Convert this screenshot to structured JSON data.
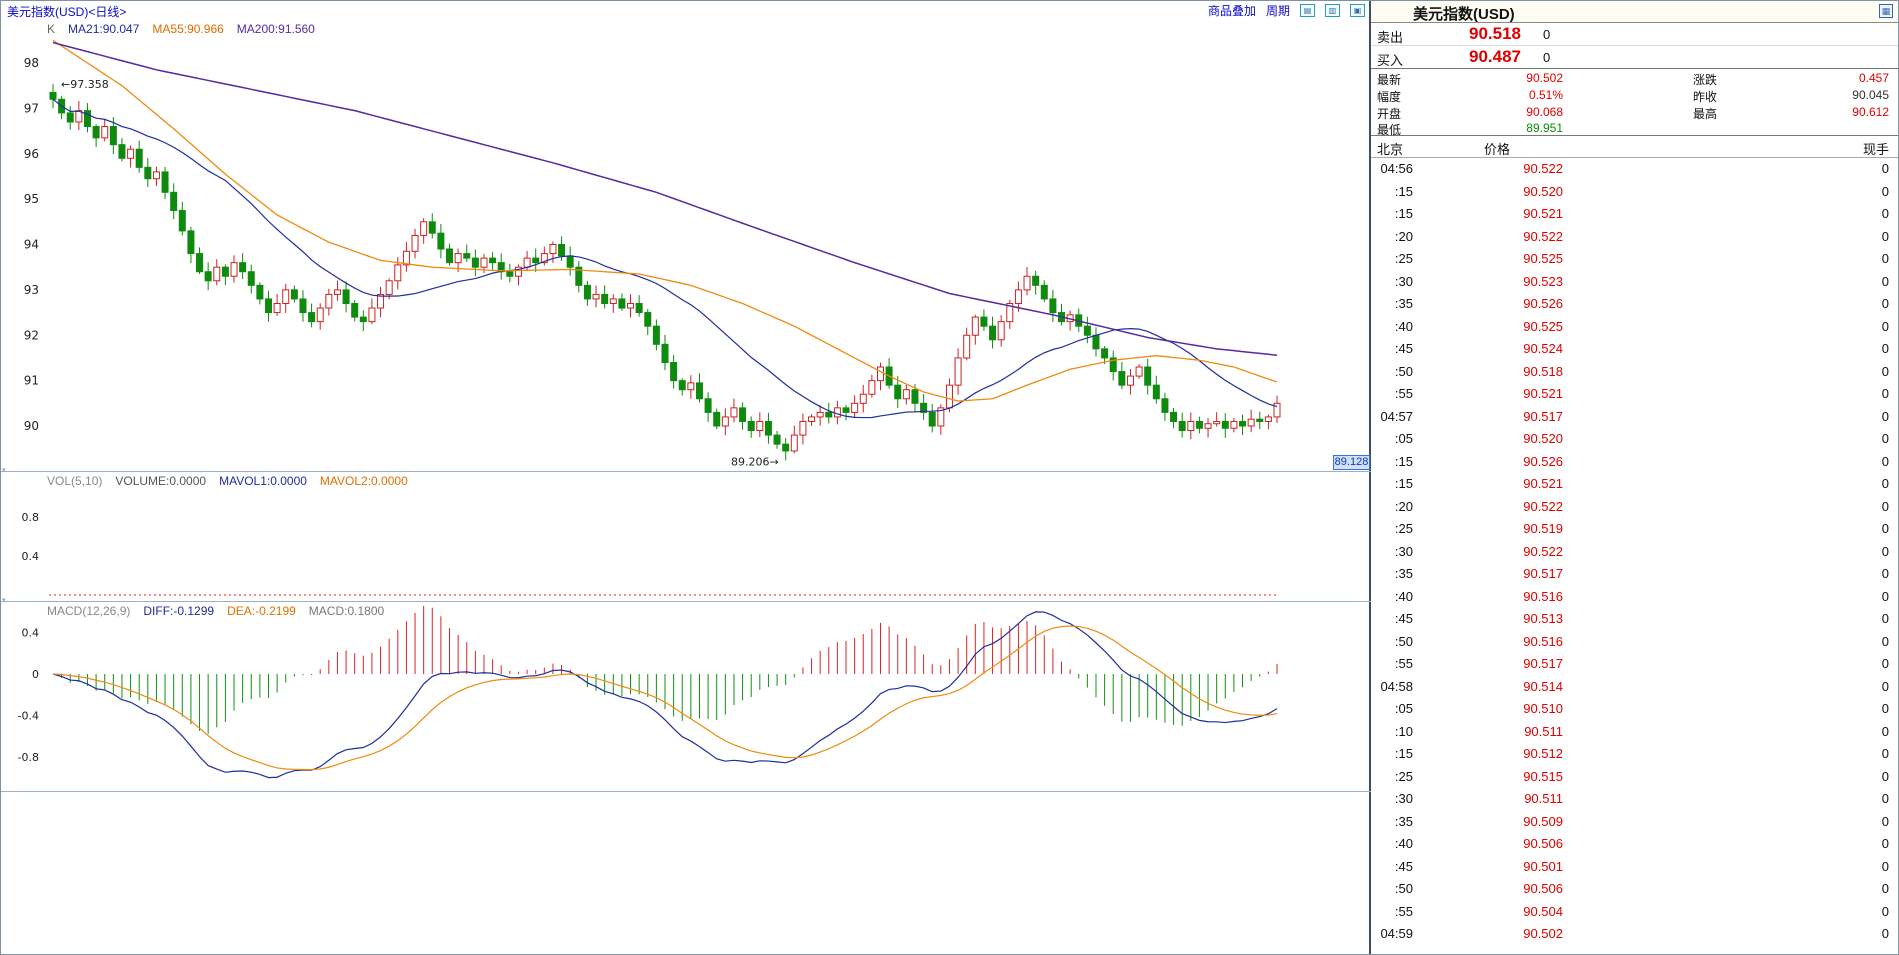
{
  "window": {
    "chart_title": "美元指数(USD)<日线>",
    "toolbar": {
      "overlay_link": "商品叠加",
      "period_link": "周期",
      "icons": [
        "tile-horizontal-icon",
        "tile-vertical-icon",
        "cascade-windows-icon"
      ]
    }
  },
  "chart_data": {
    "type": "candlestick",
    "title": "美元指数(USD) 日线",
    "ylim": [
      89.0,
      98.97
    ],
    "panels": {
      "k": {
        "legend": [
          {
            "text": "K",
            "color": "#666666"
          },
          {
            "text": "MA21:90.047",
            "color": "#1f2d9e"
          },
          {
            "text": "MA55:90.966",
            "color": "#e06a00"
          },
          {
            "text": "MA200:91.560",
            "color": "#5529a0"
          }
        ],
        "ticks": [
          98,
          97,
          96,
          95,
          94,
          93,
          92,
          91,
          90
        ],
        "annotations": {
          "high": "97.358",
          "low": "89.206",
          "right_tag": "89.128"
        }
      },
      "vol": {
        "legend": [
          {
            "text": "VOL(5,10)",
            "color": "#888888"
          },
          {
            "text": "VOLUME:0.0000",
            "color": "#555555"
          },
          {
            "text": "MAVOL1:0.0000",
            "color": "#1f2d9e"
          },
          {
            "text": "MAVOL2:0.0000",
            "color": "#e07000"
          }
        ],
        "ticks": [
          0.8,
          0.4
        ],
        "volume_values": {
          "volume": 0.0,
          "mavol1": 0.0,
          "mavol2": 0.0
        }
      },
      "macd": {
        "legend": [
          {
            "text": "MACD(12,26,9)",
            "color": "#888888"
          },
          {
            "text": "DIFF:-0.1299",
            "color": "#1f2d9e"
          },
          {
            "text": "DEA:-0.2199",
            "color": "#e07000"
          },
          {
            "text": "MACD:0.1800",
            "color": "#777777"
          }
        ],
        "ticks": [
          0.4,
          0,
          -0.4,
          -0.8
        ]
      }
    },
    "ma_values": {
      "ma21": 90.047,
      "ma55": 90.966,
      "ma200": 91.56
    },
    "macd_values": {
      "diff": -0.1299,
      "dea": -0.2199,
      "macd": 0.18
    },
    "closes": [
      97.2,
      96.9,
      96.7,
      96.95,
      96.6,
      96.35,
      96.6,
      96.2,
      95.9,
      96.1,
      95.7,
      95.45,
      95.6,
      95.15,
      94.75,
      94.3,
      93.8,
      93.4,
      93.2,
      93.5,
      93.3,
      93.6,
      93.4,
      93.1,
      92.8,
      92.5,
      92.7,
      93.0,
      92.8,
      92.5,
      92.3,
      92.6,
      92.9,
      93.0,
      92.7,
      92.4,
      92.3,
      92.6,
      92.9,
      93.2,
      93.55,
      93.85,
      94.2,
      94.5,
      94.25,
      93.9,
      93.6,
      93.8,
      93.7,
      93.5,
      93.7,
      93.6,
      93.4,
      93.3,
      93.5,
      93.7,
      93.6,
      93.8,
      94.0,
      93.75,
      93.5,
      93.1,
      92.8,
      92.9,
      92.7,
      92.8,
      92.6,
      92.7,
      92.5,
      92.2,
      91.8,
      91.4,
      91.0,
      90.8,
      90.95,
      90.6,
      90.3,
      90.0,
      90.2,
      90.4,
      90.1,
      89.9,
      90.1,
      89.8,
      89.6,
      89.45,
      89.8,
      90.1,
      90.2,
      90.3,
      90.2,
      90.4,
      90.3,
      90.5,
      90.7,
      91.0,
      91.3,
      90.9,
      90.6,
      90.8,
      90.5,
      90.3,
      90.0,
      90.4,
      90.9,
      91.5,
      92.0,
      92.4,
      92.2,
      91.9,
      92.3,
      92.7,
      93.0,
      93.3,
      93.1,
      92.8,
      92.5,
      92.3,
      92.45,
      92.2,
      92.0,
      91.7,
      91.5,
      91.2,
      90.9,
      91.1,
      91.3,
      90.9,
      90.6,
      90.3,
      90.1,
      89.9,
      90.1,
      89.95,
      90.05,
      90.1,
      89.95,
      90.1,
      90.0,
      90.15,
      90.1,
      90.2,
      90.5
    ],
    "ma55_points": [
      [
        0,
        98.5
      ],
      [
        8,
        97.5
      ],
      [
        14,
        96.55
      ],
      [
        20,
        95.55
      ],
      [
        26,
        94.65
      ],
      [
        32,
        94.05
      ],
      [
        38,
        93.65
      ],
      [
        44,
        93.5
      ],
      [
        52,
        93.42
      ],
      [
        60,
        93.45
      ],
      [
        68,
        93.35
      ],
      [
        74,
        93.1
      ],
      [
        80,
        92.7
      ],
      [
        86,
        92.2
      ],
      [
        92,
        91.6
      ],
      [
        97,
        91.1
      ],
      [
        101,
        90.75
      ],
      [
        105,
        90.55
      ],
      [
        109,
        90.6
      ],
      [
        113,
        90.9
      ],
      [
        118,
        91.25
      ],
      [
        123,
        91.45
      ],
      [
        128,
        91.55
      ],
      [
        133,
        91.45
      ],
      [
        137,
        91.3
      ],
      [
        140,
        91.1
      ],
      [
        142,
        90.97
      ]
    ],
    "ma200_points": [
      [
        0,
        98.45
      ],
      [
        12,
        97.85
      ],
      [
        23,
        97.42
      ],
      [
        35,
        96.95
      ],
      [
        46,
        96.4
      ],
      [
        58,
        95.8
      ],
      [
        70,
        95.15
      ],
      [
        81,
        94.4
      ],
      [
        93,
        93.6
      ],
      [
        104,
        92.92
      ],
      [
        116,
        92.45
      ],
      [
        127,
        91.95
      ],
      [
        135,
        91.7
      ],
      [
        142,
        91.56
      ]
    ],
    "colors": {
      "up": "#cc2222",
      "down": "#0e8a0e",
      "ma21": "#1f2d9e",
      "ma55": "#ef8a10",
      "ma200": "#5529a0",
      "macd_pos": "#dd2222",
      "macd_neg": "#129012",
      "diff": "#1f2d9e",
      "dea": "#ef8a10",
      "vol_zero_line": "#dd2222",
      "divider": "#9ab0c4"
    }
  },
  "quote_panel": {
    "title": "美元指数(USD)",
    "sell": {
      "label": "卖出",
      "price": "90.518",
      "vol": "0"
    },
    "buy": {
      "label": "买入",
      "price": "90.487",
      "vol": "0"
    },
    "stats_rows": [
      [
        {
          "label": "最新",
          "value": "90.502",
          "cls": "red"
        },
        {
          "label": "涨跌",
          "value": "0.457",
          "cls": "red"
        }
      ],
      [
        {
          "label": "幅度",
          "value": "0.51%",
          "cls": "red"
        },
        {
          "label": "昨收",
          "value": "90.045",
          "cls": "dark"
        }
      ],
      [
        {
          "label": "开盘",
          "value": "90.068",
          "cls": "red"
        },
        {
          "label": "最高",
          "value": "90.612",
          "cls": "red"
        }
      ],
      [
        {
          "label": "最低",
          "value": "89.951",
          "cls": "green"
        },
        null
      ]
    ],
    "table_header": [
      "北京",
      "价格",
      "现手"
    ],
    "rows": [
      [
        "04:56",
        "90.522",
        "0"
      ],
      [
        ":15",
        "90.520",
        "0"
      ],
      [
        ":15",
        "90.521",
        "0"
      ],
      [
        ":20",
        "90.522",
        "0"
      ],
      [
        ":25",
        "90.525",
        "0"
      ],
      [
        ":30",
        "90.523",
        "0"
      ],
      [
        ":35",
        "90.526",
        "0"
      ],
      [
        ":40",
        "90.525",
        "0"
      ],
      [
        ":45",
        "90.524",
        "0"
      ],
      [
        ":50",
        "90.518",
        "0"
      ],
      [
        ":55",
        "90.521",
        "0"
      ],
      [
        "04:57",
        "90.517",
        "0"
      ],
      [
        ":05",
        "90.520",
        "0"
      ],
      [
        ":15",
        "90.526",
        "0"
      ],
      [
        ":15",
        "90.521",
        "0"
      ],
      [
        ":20",
        "90.522",
        "0"
      ],
      [
        ":25",
        "90.519",
        "0"
      ],
      [
        ":30",
        "90.522",
        "0"
      ],
      [
        ":35",
        "90.517",
        "0"
      ],
      [
        ":40",
        "90.516",
        "0"
      ],
      [
        ":45",
        "90.513",
        "0"
      ],
      [
        ":50",
        "90.516",
        "0"
      ],
      [
        ":55",
        "90.517",
        "0"
      ],
      [
        "04:58",
        "90.514",
        "0"
      ],
      [
        ":05",
        "90.510",
        "0"
      ],
      [
        ":10",
        "90.511",
        "0"
      ],
      [
        ":15",
        "90.512",
        "0"
      ],
      [
        ":25",
        "90.515",
        "0"
      ],
      [
        ":30",
        "90.511",
        "0"
      ],
      [
        ":35",
        "90.509",
        "0"
      ],
      [
        ":40",
        "90.506",
        "0"
      ],
      [
        ":45",
        "90.501",
        "0"
      ],
      [
        ":50",
        "90.506",
        "0"
      ],
      [
        ":55",
        "90.504",
        "0"
      ],
      [
        "04:59",
        "90.502",
        "0"
      ]
    ]
  }
}
